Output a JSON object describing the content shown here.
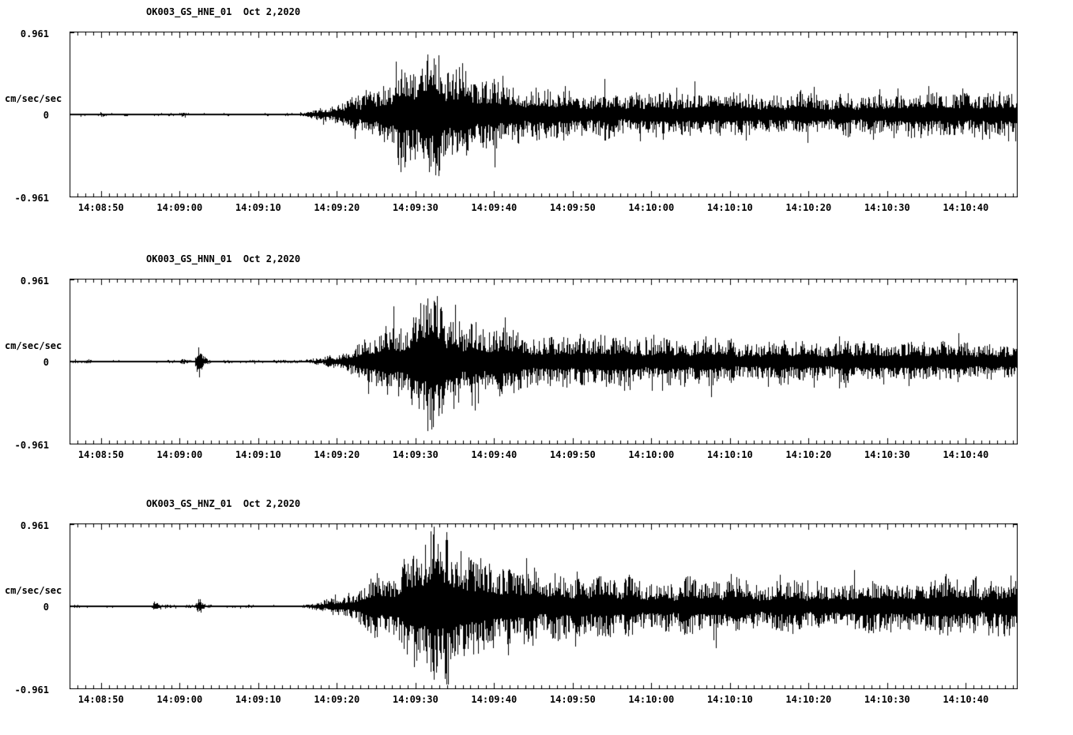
{
  "page": {
    "background": "#ffffff",
    "foreground": "#000000"
  },
  "panels": [
    {
      "title": "OK003_GS_HNE_01  Oct 2,2020",
      "y_unit": "cm/sec/sec",
      "y_max_label": "0.961",
      "y_zero_label": "0",
      "y_min_label": "-0.961"
    },
    {
      "title": "OK003_GS_HNN_01  Oct 2,2020",
      "y_unit": "cm/sec/sec",
      "y_max_label": "0.961",
      "y_zero_label": "0",
      "y_min_label": "-0.961"
    },
    {
      "title": "OK003_GS_HNZ_01  Oct 2,2020",
      "y_unit": "cm/sec/sec",
      "y_max_label": "0.961",
      "y_zero_label": "0",
      "y_min_label": "-0.961"
    }
  ],
  "time_axis": {
    "labels": [
      "14:08:50",
      "14:09:00",
      "14:09:10",
      "14:09:20",
      "14:09:30",
      "14:09:40",
      "14:09:50",
      "14:10:00",
      "14:10:10",
      "14:10:20",
      "14:10:30",
      "14:10:40"
    ],
    "first_label_offset_sec": 4,
    "major_interval_sec": 10,
    "minor_interval_sec": 1,
    "duration_sec": 120.6
  },
  "chart_data": {
    "type": "line",
    "subtype": "seismogram-3-component-acceleration",
    "date": "Oct 2,2020",
    "ylabel": "cm/sec/sec",
    "ylim": [
      -0.961,
      0.961
    ],
    "y_tick_values": [
      0.961,
      0,
      -0.961
    ],
    "x_tick_labels": [
      "14:08:50",
      "14:09:00",
      "14:09:10",
      "14:09:20",
      "14:09:30",
      "14:09:40",
      "14:09:50",
      "14:10:00",
      "14:10:10",
      "14:10:20",
      "14:10:30",
      "14:10:40"
    ],
    "x_start_time": "14:08:46",
    "x_end_time": "14:10:47",
    "envelope_units": "peak amplitude in cm/sec/sec vs seconds from trace start (left edge = 14:08:46); waveform is zero-mean noise bounded by this envelope",
    "series": [
      {
        "name": "OK003_GS_HNE_01",
        "seed": 101,
        "envelope": [
          [
            0,
            0.013
          ],
          [
            3.5,
            0.013
          ],
          [
            4,
            0.028
          ],
          [
            4.8,
            0.013
          ],
          [
            13.6,
            0.013
          ],
          [
            14.4,
            0.03
          ],
          [
            15.4,
            0.014
          ],
          [
            29,
            0.014
          ],
          [
            31,
            0.045
          ],
          [
            34,
            0.13
          ],
          [
            37,
            0.26
          ],
          [
            40,
            0.42
          ],
          [
            43,
            0.62
          ],
          [
            45,
            0.8
          ],
          [
            46.5,
            0.72
          ],
          [
            48,
            0.6
          ],
          [
            51,
            0.45
          ],
          [
            54,
            0.35
          ],
          [
            59,
            0.3
          ],
          [
            64,
            0.27
          ],
          [
            74,
            0.25
          ],
          [
            84,
            0.23
          ],
          [
            94,
            0.23
          ],
          [
            100,
            0.22
          ],
          [
            106,
            0.24
          ],
          [
            112,
            0.26
          ],
          [
            117,
            0.24
          ],
          [
            120.6,
            0.25
          ]
        ]
      },
      {
        "name": "OK003_GS_HNN_01",
        "seed": 202,
        "envelope": [
          [
            0,
            0.014
          ],
          [
            1.8,
            0.014
          ],
          [
            2.3,
            0.03
          ],
          [
            3,
            0.014
          ],
          [
            13.8,
            0.014
          ],
          [
            14.3,
            0.04
          ],
          [
            15.2,
            0.016
          ],
          [
            15.9,
            0.016
          ],
          [
            16.3,
            0.27
          ],
          [
            17.1,
            0.05
          ],
          [
            17.9,
            0.016
          ],
          [
            29.5,
            0.016
          ],
          [
            33,
            0.06
          ],
          [
            36,
            0.15
          ],
          [
            39,
            0.3
          ],
          [
            42,
            0.48
          ],
          [
            44.5,
            0.66
          ],
          [
            46,
            0.79
          ],
          [
            47.5,
            0.68
          ],
          [
            50,
            0.5
          ],
          [
            53,
            0.38
          ],
          [
            57,
            0.3
          ],
          [
            62,
            0.27
          ],
          [
            70,
            0.26
          ],
          [
            78,
            0.24
          ],
          [
            86,
            0.25
          ],
          [
            94,
            0.23
          ],
          [
            102,
            0.24
          ],
          [
            110,
            0.23
          ],
          [
            116,
            0.24
          ],
          [
            120.6,
            0.24
          ]
        ]
      },
      {
        "name": "OK003_GS_HNZ_01",
        "seed": 303,
        "envelope": [
          [
            0,
            0.013
          ],
          [
            10.4,
            0.013
          ],
          [
            10.9,
            0.075
          ],
          [
            11.6,
            0.02
          ],
          [
            15.9,
            0.016
          ],
          [
            16.4,
            0.115
          ],
          [
            17.2,
            0.025
          ],
          [
            18,
            0.014
          ],
          [
            29.5,
            0.014
          ],
          [
            32,
            0.05
          ],
          [
            35,
            0.12
          ],
          [
            38,
            0.26
          ],
          [
            41,
            0.44
          ],
          [
            43.5,
            0.62
          ],
          [
            45.5,
            0.8
          ],
          [
            47,
            0.7
          ],
          [
            48.8,
            0.76
          ],
          [
            50,
            0.66
          ],
          [
            52,
            0.54
          ],
          [
            55,
            0.42
          ],
          [
            59,
            0.36
          ],
          [
            64,
            0.33
          ],
          [
            70,
            0.31
          ],
          [
            76,
            0.29
          ],
          [
            82,
            0.3
          ],
          [
            88,
            0.27
          ],
          [
            94,
            0.3
          ],
          [
            100,
            0.28
          ],
          [
            106,
            0.31
          ],
          [
            112,
            0.33
          ],
          [
            116,
            0.31
          ],
          [
            120.6,
            0.3
          ]
        ]
      }
    ]
  }
}
